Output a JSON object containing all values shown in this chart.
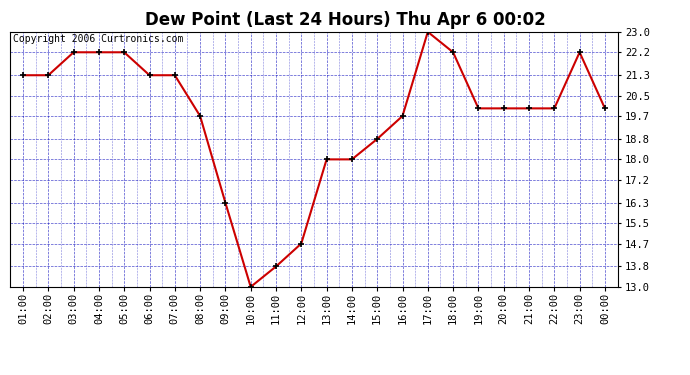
{
  "title": "Dew Point (Last 24 Hours) Thu Apr 6 00:02",
  "copyright": "Copyright 2006 Curtronics.com",
  "x_labels": [
    "01:00",
    "02:00",
    "03:00",
    "04:00",
    "05:00",
    "06:00",
    "07:00",
    "08:00",
    "09:00",
    "10:00",
    "11:00",
    "12:00",
    "13:00",
    "14:00",
    "15:00",
    "16:00",
    "17:00",
    "18:00",
    "19:00",
    "20:00",
    "21:00",
    "22:00",
    "23:00",
    "00:00"
  ],
  "y_values": [
    21.3,
    21.3,
    22.2,
    22.2,
    22.2,
    21.3,
    21.3,
    19.7,
    16.3,
    13.0,
    13.8,
    14.7,
    18.0,
    18.0,
    18.8,
    19.7,
    23.0,
    22.2,
    20.0,
    20.0,
    20.0,
    20.0,
    22.2,
    20.0
  ],
  "y_ticks": [
    13.0,
    13.8,
    14.7,
    15.5,
    16.3,
    17.2,
    18.0,
    18.8,
    19.7,
    20.5,
    21.3,
    22.2,
    23.0
  ],
  "y_min": 13.0,
  "y_max": 23.0,
  "line_color": "#cc0000",
  "marker_color": "#000000",
  "fig_bg_color": "#ffffff",
  "plot_bg_color": "#ffffff",
  "grid_color": "#0000bb",
  "title_fontsize": 12,
  "tick_fontsize": 7.5,
  "copyright_fontsize": 7
}
